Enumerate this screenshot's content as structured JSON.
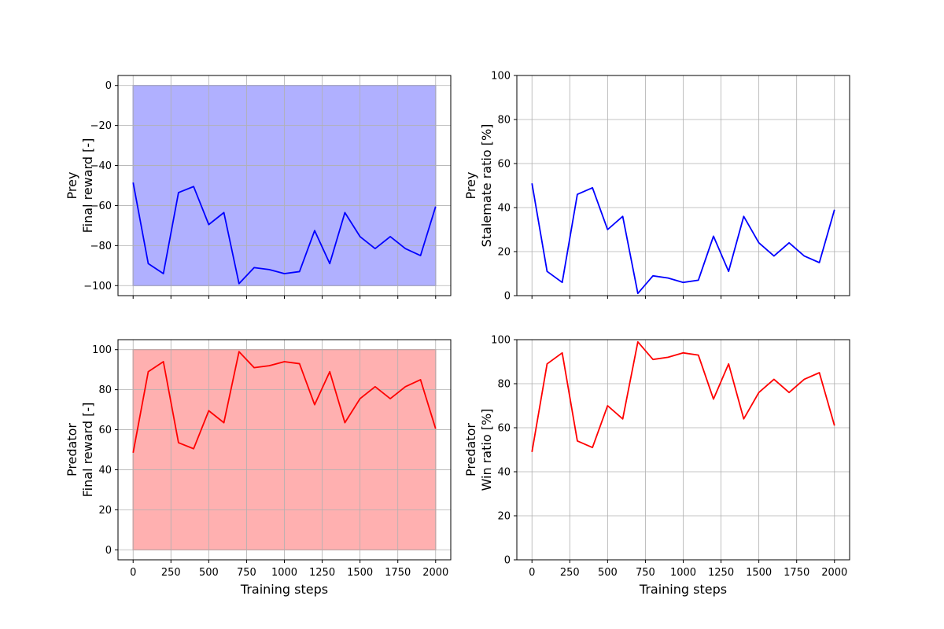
{
  "figure": {
    "background": "#ffffff",
    "grid_color": "#b0b0b0"
  },
  "chart_data": [
    {
      "id": "prey-reward",
      "type": "line",
      "title": "",
      "ylabel_lines": [
        "Prey",
        "Final reward [-]"
      ],
      "xlabel": "",
      "xlim": [
        -100,
        2100
      ],
      "ylim": [
        -105,
        5
      ],
      "xticks": [
        0,
        250,
        500,
        750,
        1000,
        1250,
        1500,
        1750,
        2000
      ],
      "xtick_labels": [],
      "yticks": [
        -100,
        -80,
        -60,
        -40,
        -20,
        0
      ],
      "ytick_labels": [
        "−100",
        "−80",
        "−60",
        "−40",
        "−20",
        "0"
      ],
      "grid": true,
      "band": {
        "x": [
          0,
          2000
        ],
        "y": [
          -100,
          0
        ],
        "fill": "#b0b0ff",
        "edge": "#9f9fe6"
      },
      "series": [
        {
          "color": "#0000ff",
          "x": [
            0,
            100,
            200,
            300,
            400,
            500,
            600,
            700,
            800,
            900,
            1000,
            1100,
            1200,
            1300,
            1400,
            1500,
            1600,
            1700,
            1800,
            1900,
            2000
          ],
          "y": [
            -48.5,
            -89,
            -94,
            -53.5,
            -50.5,
            -69.5,
            -63.5,
            -99,
            -91,
            -92,
            -94,
            -93,
            -72.5,
            -89,
            -63.5,
            -75.5,
            -81.5,
            -75.5,
            -81.5,
            -85,
            -60.5
          ]
        }
      ]
    },
    {
      "id": "prey-stalemate",
      "type": "line",
      "title": "",
      "ylabel_lines": [
        "Prey",
        "Stalemate ratio [%]"
      ],
      "xlabel": "",
      "xlim": [
        -100,
        2100
      ],
      "ylim": [
        0,
        100
      ],
      "xticks": [
        0,
        250,
        500,
        750,
        1000,
        1250,
        1500,
        1750,
        2000
      ],
      "xtick_labels": [],
      "yticks": [
        0,
        20,
        40,
        60,
        80,
        100
      ],
      "ytick_labels": [
        "0",
        "20",
        "40",
        "60",
        "80",
        "100"
      ],
      "grid": true,
      "series": [
        {
          "color": "#0000ff",
          "x": [
            0,
            100,
            200,
            300,
            400,
            500,
            600,
            700,
            800,
            900,
            1000,
            1100,
            1200,
            1300,
            1400,
            1500,
            1600,
            1700,
            1800,
            1900,
            2000
          ],
          "y": [
            51,
            11,
            6,
            46,
            49,
            30,
            36,
            1,
            9,
            8,
            6,
            7,
            27,
            11,
            36,
            24,
            18,
            24,
            18,
            15,
            39
          ]
        }
      ]
    },
    {
      "id": "predator-reward",
      "type": "line",
      "title": "",
      "ylabel_lines": [
        "Predator",
        "Final reward [-]"
      ],
      "xlabel": "Training steps",
      "xlim": [
        -100,
        2100
      ],
      "ylim": [
        -5,
        105
      ],
      "xticks": [
        0,
        250,
        500,
        750,
        1000,
        1250,
        1500,
        1750,
        2000
      ],
      "xtick_labels": [
        "0",
        "250",
        "500",
        "750",
        "1000",
        "1250",
        "1500",
        "1750",
        "2000"
      ],
      "yticks": [
        0,
        20,
        40,
        60,
        80,
        100
      ],
      "ytick_labels": [
        "0",
        "20",
        "40",
        "60",
        "80",
        "100"
      ],
      "grid": true,
      "band": {
        "x": [
          0,
          2000
        ],
        "y": [
          0,
          100
        ],
        "fill": "#ffb0b0",
        "edge": "#e69f9f"
      },
      "series": [
        {
          "color": "#ff0000",
          "x": [
            0,
            100,
            200,
            300,
            400,
            500,
            600,
            700,
            800,
            900,
            1000,
            1100,
            1200,
            1300,
            1400,
            1500,
            1600,
            1700,
            1800,
            1900,
            2000
          ],
          "y": [
            48.5,
            89,
            94,
            53.5,
            50.5,
            69.5,
            63.5,
            99,
            91,
            92,
            94,
            93,
            72.5,
            89,
            63.5,
            75.5,
            81.5,
            75.5,
            81.5,
            85,
            60.5
          ]
        }
      ]
    },
    {
      "id": "predator-win",
      "type": "line",
      "title": "",
      "ylabel_lines": [
        "Predator",
        "Win ratio [%]"
      ],
      "xlabel": "Training steps",
      "xlim": [
        -100,
        2100
      ],
      "ylim": [
        0,
        100
      ],
      "xticks": [
        0,
        250,
        500,
        750,
        1000,
        1250,
        1500,
        1750,
        2000
      ],
      "xtick_labels": [
        "0",
        "250",
        "500",
        "750",
        "1000",
        "1250",
        "1500",
        "1750",
        "2000"
      ],
      "yticks": [
        0,
        20,
        40,
        60,
        80,
        100
      ],
      "ytick_labels": [
        "0",
        "20",
        "40",
        "60",
        "80",
        "100"
      ],
      "grid": true,
      "series": [
        {
          "color": "#ff0000",
          "x": [
            0,
            100,
            200,
            300,
            400,
            500,
            600,
            700,
            800,
            900,
            1000,
            1100,
            1200,
            1300,
            1400,
            1500,
            1600,
            1700,
            1800,
            1900,
            2000
          ],
          "y": [
            49,
            89,
            94,
            54,
            51,
            70,
            64,
            99,
            91,
            92,
            94,
            93,
            73,
            89,
            64,
            76,
            82,
            76,
            82,
            85,
            61
          ]
        }
      ]
    }
  ]
}
